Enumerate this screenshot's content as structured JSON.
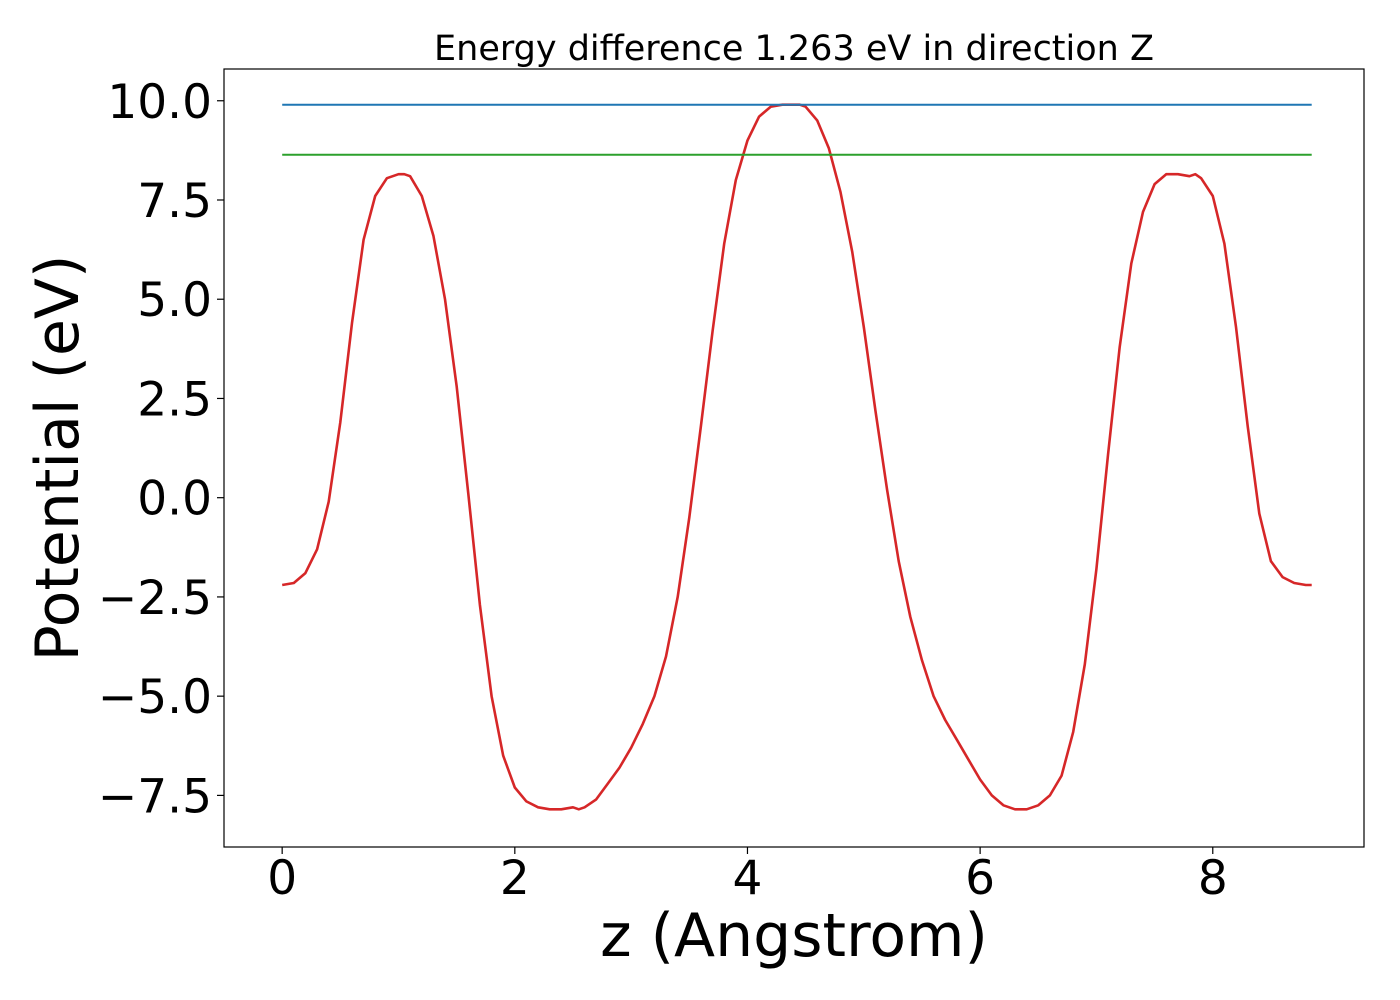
{
  "chart_data": {
    "type": "line",
    "title": "Energy difference 1.263 eV in direction Z",
    "xlabel": "z (Angstrom)",
    "ylabel": "Potential (eV)",
    "xlim": [
      -0.5,
      9.3
    ],
    "ylim": [
      -8.8,
      10.8
    ],
    "xticks": [
      0,
      2,
      4,
      6,
      8
    ],
    "xtick_labels": [
      "0",
      "2",
      "4",
      "6",
      "8"
    ],
    "yticks": [
      10.0,
      7.5,
      5.0,
      2.5,
      0.0,
      -2.5,
      -5.0,
      -7.5
    ],
    "ytick_labels": [
      "10.0",
      "7.5",
      "5.0",
      "2.5",
      "0.0",
      "−2.5",
      "−5.0",
      "−7.5"
    ],
    "grid": false,
    "series": [
      {
        "color": "#d62728",
        "x": [
          0,
          0.1,
          0.2,
          0.3,
          0.4,
          0.5,
          0.6,
          0.7,
          0.8,
          0.9,
          1.0,
          1.05,
          1.1,
          1.2,
          1.3,
          1.4,
          1.5,
          1.6,
          1.7,
          1.8,
          1.9,
          2.0,
          2.1,
          2.2,
          2.3,
          2.4,
          2.5,
          2.55,
          2.6,
          2.7,
          2.8,
          2.9,
          3.0,
          3.1,
          3.2,
          3.3,
          3.4,
          3.5,
          3.6,
          3.7,
          3.8,
          3.9,
          4.0,
          4.1,
          4.2,
          4.3,
          4.4,
          4.45,
          4.5,
          4.6,
          4.7,
          4.8,
          4.9,
          5.0,
          5.1,
          5.2,
          5.3,
          5.4,
          5.5,
          5.6,
          5.7,
          5.8,
          5.9,
          6.0,
          6.1,
          6.2,
          6.3,
          6.35,
          6.4,
          6.5,
          6.6,
          6.7,
          6.8,
          6.9,
          7.0,
          7.1,
          7.2,
          7.3,
          7.4,
          7.5,
          7.6,
          7.7,
          7.8,
          7.85,
          7.9,
          8.0,
          8.1,
          8.2,
          8.3,
          8.4,
          8.5,
          8.6,
          8.7,
          8.8,
          8.85
        ],
        "y": [
          -2.2,
          -2.15,
          -1.9,
          -1.3,
          -0.1,
          1.9,
          4.4,
          6.5,
          7.6,
          8.05,
          8.15,
          8.15,
          8.1,
          7.6,
          6.6,
          5.0,
          2.8,
          0.1,
          -2.7,
          -5.0,
          -6.5,
          -7.3,
          -7.65,
          -7.8,
          -7.85,
          -7.85,
          -7.8,
          -7.85,
          -7.8,
          -7.6,
          -7.2,
          -6.8,
          -6.3,
          -5.7,
          -5.0,
          -4.0,
          -2.5,
          -0.5,
          1.8,
          4.2,
          6.4,
          8.0,
          9.0,
          9.6,
          9.85,
          9.9,
          9.9,
          9.9,
          9.85,
          9.5,
          8.8,
          7.7,
          6.2,
          4.3,
          2.2,
          0.2,
          -1.6,
          -3.0,
          -4.1,
          -5.0,
          -5.6,
          -6.1,
          -6.6,
          -7.1,
          -7.5,
          -7.75,
          -7.85,
          -7.85,
          -7.85,
          -7.75,
          -7.5,
          -7.0,
          -5.9,
          -4.2,
          -1.8,
          1.1,
          3.8,
          5.9,
          7.2,
          7.9,
          8.15,
          8.15,
          8.1,
          8.15,
          8.05,
          7.6,
          6.4,
          4.3,
          1.8,
          -0.4,
          -1.6,
          -2.0,
          -2.15,
          -2.2,
          -2.2
        ]
      },
      {
        "color": "#1f77b4",
        "x": [
          0,
          8.85
        ],
        "y": [
          9.9,
          9.9
        ]
      },
      {
        "color": "#2ca02c",
        "x": [
          0,
          8.85
        ],
        "y": [
          8.64,
          8.64
        ]
      }
    ]
  }
}
